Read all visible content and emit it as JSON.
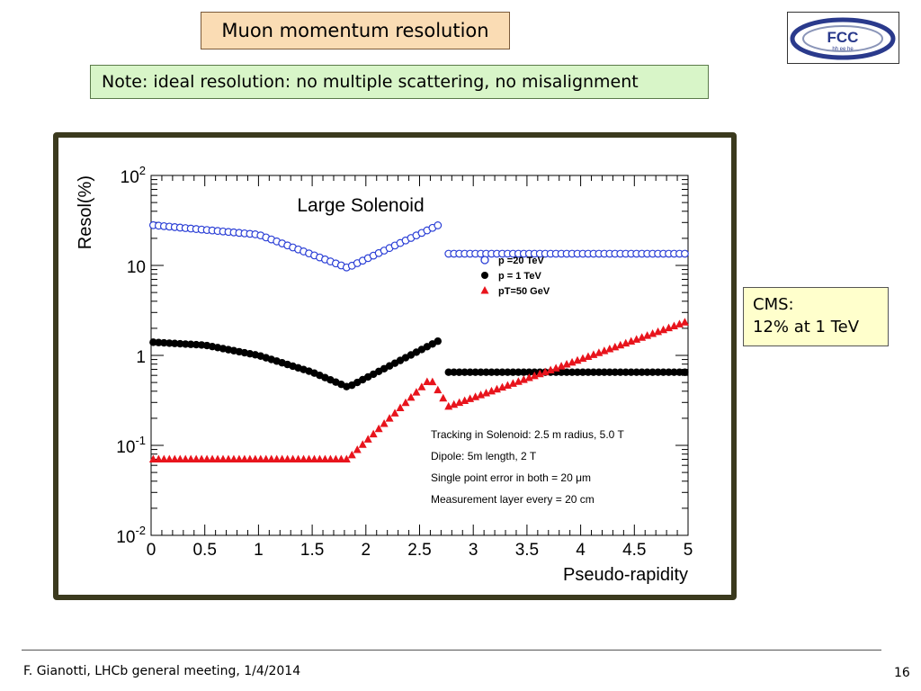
{
  "slide": {
    "title": "Muon momentum resolution",
    "note": "Note: ideal resolution: no multiple scattering, no misalignment",
    "cms_line1": "CMS:",
    "cms_line2": "12% at 1 TeV",
    "footer_text": "F. Gianotti, LHCb general meeting, 1/4/2014",
    "page_number": "16",
    "logo_text": "FCC",
    "logo_subtext": "hh ee he"
  },
  "chart_data": {
    "type": "scatter",
    "title": "Large Solenoid",
    "xlabel": "Pseudo-rapidity",
    "ylabel": "Resol(%)",
    "xlim": [
      0,
      5
    ],
    "ylim": [
      0.01,
      100
    ],
    "yscale": "log",
    "x_ticks": [
      "0",
      "0.5",
      "1",
      "1.5",
      "2",
      "2.5",
      "3",
      "3.5",
      "4",
      "4.5",
      "5"
    ],
    "y_ticks": [
      {
        "base": "10",
        "exp": "-2",
        "value": 0.01
      },
      {
        "base": "10",
        "exp": "-1",
        "value": 0.1
      },
      {
        "base": "1",
        "exp": "",
        "value": 1
      },
      {
        "base": "10",
        "exp": "",
        "value": 10
      },
      {
        "base": "10",
        "exp": "2",
        "value": 100
      }
    ],
    "legend_position": "upper-right",
    "series": [
      {
        "name": "p  =20 TeV",
        "marker": "open-circle",
        "color": "#2b3fd6",
        "points": [
          [
            0.02,
            28
          ],
          [
            1.0,
            22
          ],
          [
            1.82,
            9.5
          ],
          [
            1.86,
            9.8
          ],
          [
            2.7,
            29
          ],
          [
            2.77,
            13.5
          ],
          [
            5.0,
            13.5
          ]
        ]
      },
      {
        "name": "p  = 1 TeV",
        "marker": "filled-circle",
        "color": "#000000",
        "points": [
          [
            0.02,
            1.4
          ],
          [
            0.5,
            1.3
          ],
          [
            1.0,
            1.0
          ],
          [
            1.5,
            0.65
          ],
          [
            1.82,
            0.45
          ],
          [
            1.86,
            0.46
          ],
          [
            2.7,
            1.5
          ],
          [
            2.77,
            0.65
          ],
          [
            5.0,
            0.65
          ]
        ]
      },
      {
        "name": "pT=50 GeV",
        "marker": "filled-triangle",
        "color": "#e8141c",
        "points": [
          [
            0.02,
            0.07
          ],
          [
            1.83,
            0.07
          ],
          [
            2.6,
            0.55
          ],
          [
            2.77,
            0.27
          ],
          [
            5.0,
            2.4
          ]
        ]
      }
    ],
    "annotations": [
      "Tracking in Solenoid: 2.5 m radius, 5.0 T",
      "Dipole: 5m length, 2 T",
      "Single point error in both = 20 μm",
      "Measurement layer every = 20 cm"
    ]
  }
}
